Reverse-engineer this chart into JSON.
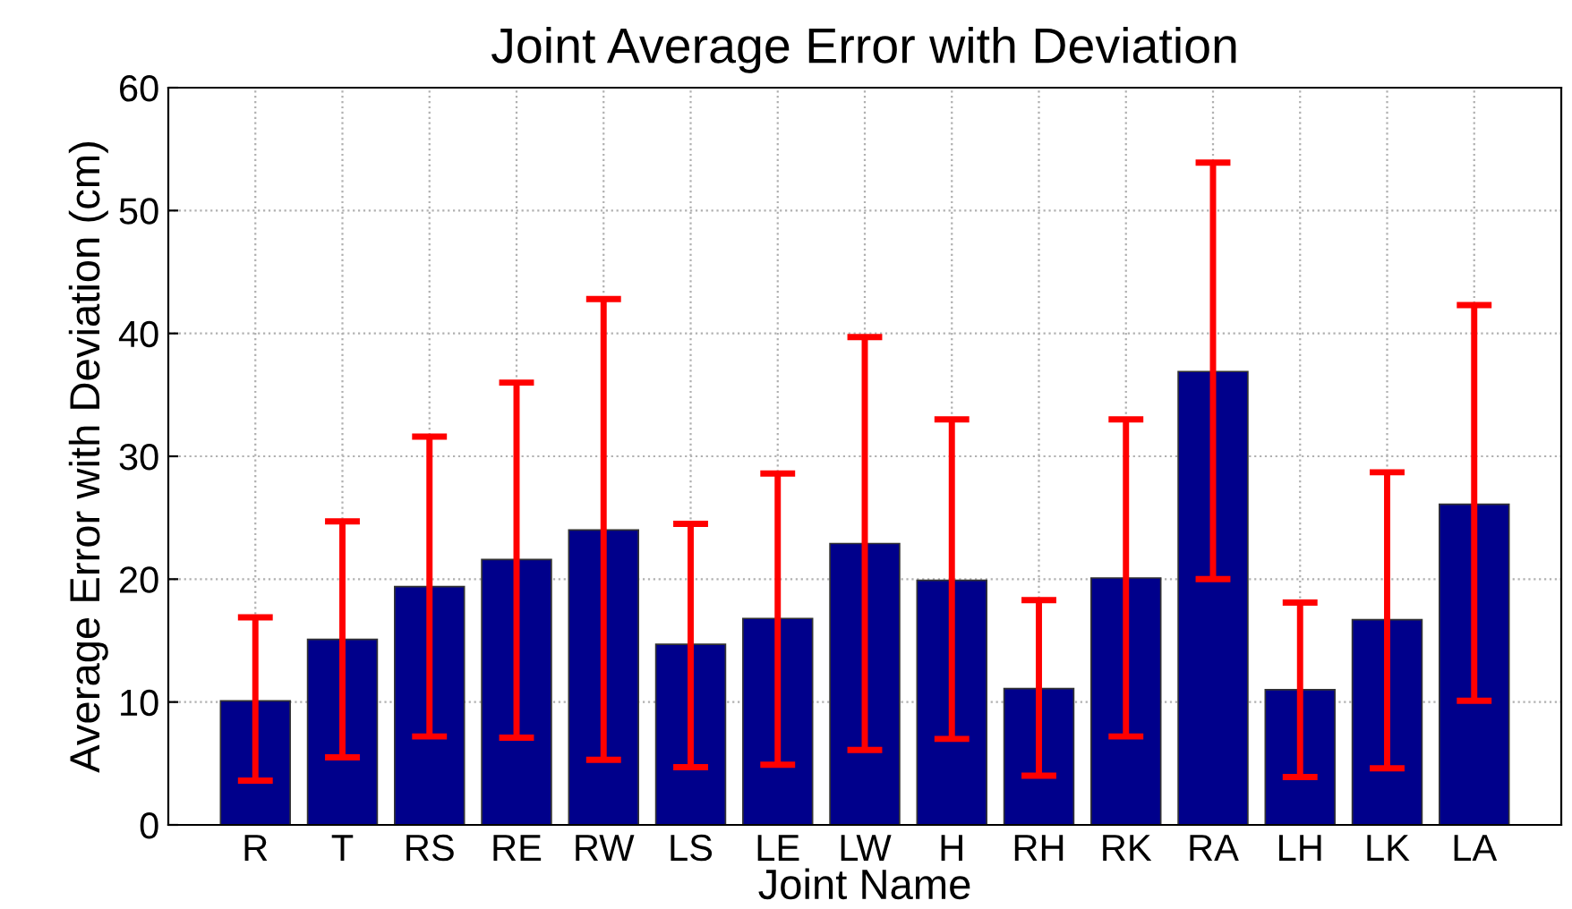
{
  "chart_data": {
    "type": "bar",
    "title": "Joint Average Error with Deviation",
    "xlabel": "Joint Name",
    "ylabel": "Average Error with Deviation (cm)",
    "categories": [
      "R",
      "T",
      "RS",
      "RE",
      "RW",
      "LS",
      "LE",
      "LW",
      "H",
      "RH",
      "RK",
      "RA",
      "LH",
      "LK",
      "LA"
    ],
    "values": [
      10.1,
      15.1,
      19.4,
      21.6,
      24.0,
      14.7,
      16.8,
      22.9,
      19.9,
      11.1,
      20.1,
      36.9,
      11.0,
      16.7,
      26.1
    ],
    "errors": [
      [
        3.6,
        16.9
      ],
      [
        5.5,
        24.7
      ],
      [
        7.2,
        31.6
      ],
      [
        7.1,
        36.0
      ],
      [
        5.3,
        42.8
      ],
      [
        4.7,
        24.5
      ],
      [
        4.9,
        28.6
      ],
      [
        6.1,
        39.7
      ],
      [
        7.0,
        33.0
      ],
      [
        4.0,
        18.3
      ],
      [
        7.2,
        33.0
      ],
      [
        20.0,
        53.9
      ],
      [
        3.9,
        18.1
      ],
      [
        4.6,
        28.7
      ],
      [
        10.1,
        42.3
      ]
    ],
    "color": "#00008b",
    "ylim": [
      0,
      60
    ],
    "yticks": [
      0,
      10,
      20,
      30,
      40,
      50,
      60
    ],
    "grid": true,
    "legend": false
  }
}
